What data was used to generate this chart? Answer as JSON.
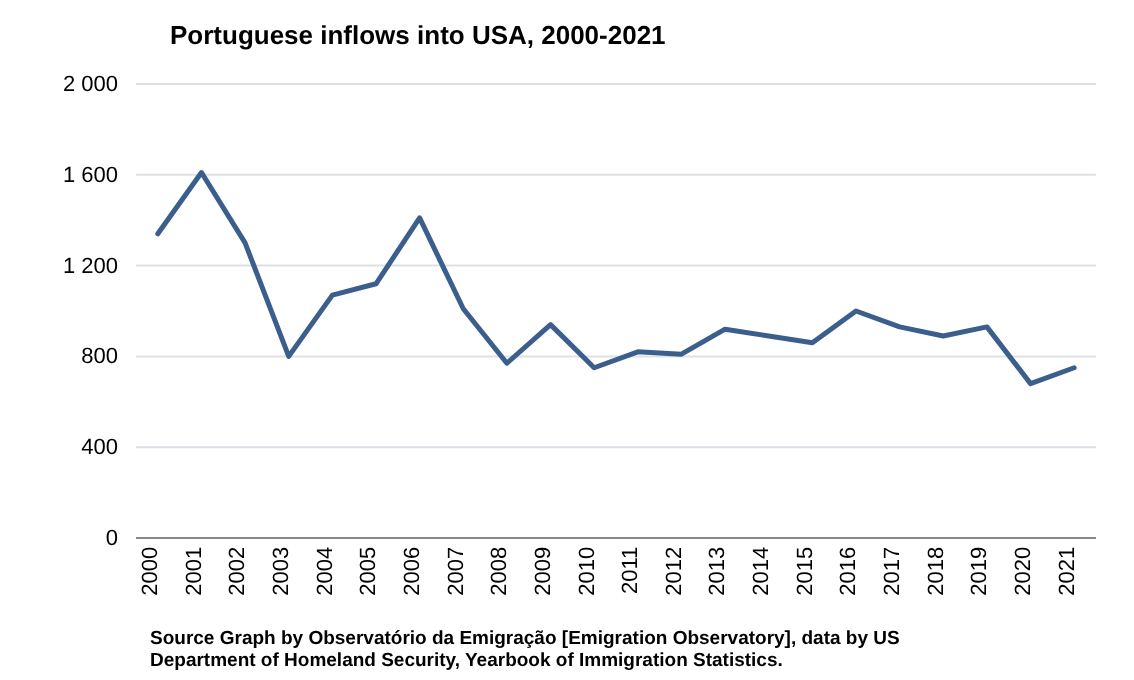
{
  "chart_data": {
    "type": "line",
    "title": "Portuguese inflows into USA, 2000-2021",
    "categories": [
      "2000",
      "2001",
      "2002",
      "2003",
      "2004",
      "2005",
      "2006",
      "2007",
      "2008",
      "2009",
      "2010",
      "2011",
      "2012",
      "2013",
      "2014",
      "2015",
      "2016",
      "2017",
      "2018",
      "2019",
      "2020",
      "2021"
    ],
    "series": [
      {
        "color": "#3b5e8c",
        "values": [
          1340,
          1610,
          1300,
          800,
          1070,
          1120,
          1410,
          1010,
          770,
          940,
          750,
          820,
          810,
          920,
          890,
          860,
          1000,
          930,
          890,
          930,
          680,
          750
        ]
      }
    ],
    "ylim": [
      0,
      2000
    ],
    "yticks": [
      0,
      400,
      800,
      {
        "value": 1200,
        "label": "1 200"
      },
      {
        "value": 1600,
        "label": "1 600"
      },
      {
        "value": 2000,
        "label": "2 000"
      }
    ],
    "grid": "y",
    "marker": "none",
    "line_style": "solid",
    "annotations": [
      "Source  Graph by Observatório da Emigração [Emigration Observatory], data by US Department of Homeland Security, Yearbook of Immigration Statistics."
    ]
  }
}
